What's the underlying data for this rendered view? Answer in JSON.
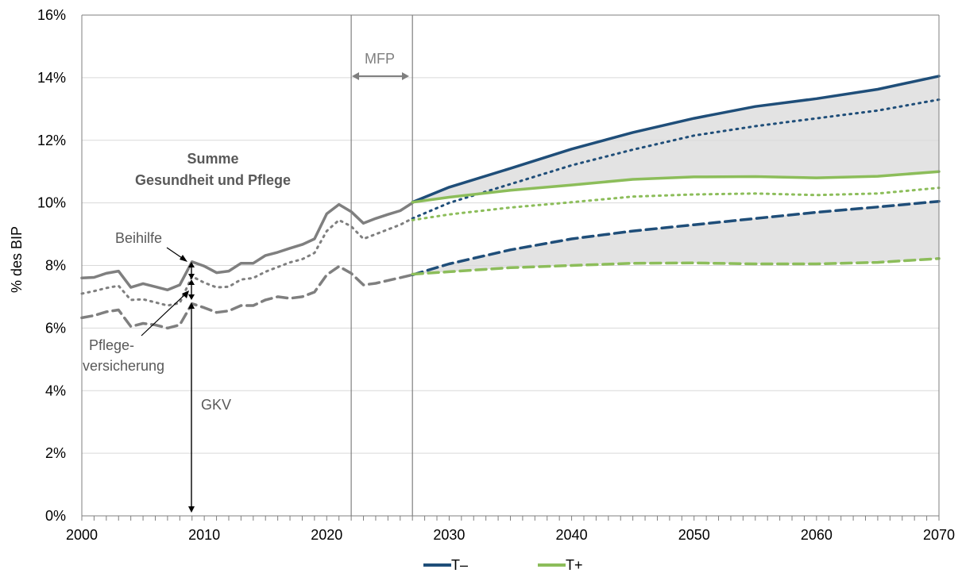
{
  "chart_data": {
    "type": "line",
    "ylabel": "% des BIP",
    "xlim": [
      2000,
      2070
    ],
    "ylim": [
      0,
      16
    ],
    "x_ticks": [
      2000,
      2010,
      2020,
      2030,
      2040,
      2050,
      2060,
      2070
    ],
    "x_tick_labels": [
      "2000",
      "2010",
      "2020",
      "2030",
      "2040",
      "2050",
      "2060",
      "2070"
    ],
    "y_ticks": [
      0,
      2,
      4,
      6,
      8,
      10,
      12,
      14,
      16
    ],
    "y_tick_labels": [
      "0%",
      "2%",
      "4%",
      "6%",
      "8%",
      "10%",
      "12%",
      "14%",
      "16%"
    ],
    "grid": "horizontal",
    "legend_position": "bottom",
    "legend": [
      {
        "label": "T–",
        "color": "#1f4e79"
      },
      {
        "label": "T+",
        "color": "#8cbd5a"
      }
    ],
    "annotations": {
      "title_line1": "Summe",
      "title_line2": "Gesundheit und Pflege",
      "mfp": "MFP",
      "beihilfe": "Beihilfe",
      "pflege_line1": "Pflege-",
      "pflege_line2": "versicherung",
      "gkv": "GKV"
    },
    "vertical_markers": [
      2022,
      2027
    ],
    "colors": {
      "historical": "#7f7f7f",
      "t_minus": "#1f4e79",
      "t_plus": "#8cbd5a",
      "band": "#d9d9d9",
      "grid": "#d9d9d9",
      "axis": "#7f7f7f"
    },
    "series": [
      {
        "name": "Summe (historisch)",
        "style": "solid",
        "color_key": "historical",
        "x": [
          2000,
          2001,
          2002,
          2003,
          2004,
          2005,
          2006,
          2007,
          2008,
          2009,
          2010,
          2011,
          2012,
          2013,
          2014,
          2015,
          2016,
          2017,
          2018,
          2019,
          2020,
          2021,
          2022,
          2023,
          2024,
          2025,
          2026,
          2027
        ],
        "y": [
          7.6,
          7.62,
          7.75,
          7.82,
          7.3,
          7.42,
          7.32,
          7.22,
          7.38,
          8.12,
          7.98,
          7.77,
          7.82,
          8.07,
          8.07,
          8.32,
          8.42,
          8.55,
          8.67,
          8.85,
          9.65,
          9.95,
          9.72,
          9.35,
          9.5,
          9.63,
          9.75,
          10.0
        ]
      },
      {
        "name": "GKV + Pflegeversicherung (historisch)",
        "style": "dotted",
        "color_key": "historical",
        "x": [
          2000,
          2001,
          2002,
          2003,
          2004,
          2005,
          2006,
          2007,
          2008,
          2009,
          2010,
          2011,
          2012,
          2013,
          2014,
          2015,
          2016,
          2017,
          2018,
          2019,
          2020,
          2021,
          2022,
          2023,
          2024,
          2025,
          2026,
          2027
        ],
        "y": [
          7.1,
          7.18,
          7.28,
          7.35,
          6.9,
          6.92,
          6.82,
          6.72,
          6.8,
          7.65,
          7.45,
          7.3,
          7.32,
          7.55,
          7.6,
          7.8,
          7.95,
          8.1,
          8.2,
          8.4,
          9.1,
          9.45,
          9.25,
          8.85,
          9.0,
          9.15,
          9.3,
          9.5
        ]
      },
      {
        "name": "GKV (historisch)",
        "style": "dashed",
        "color_key": "historical",
        "x": [
          2000,
          2001,
          2002,
          2003,
          2004,
          2005,
          2006,
          2007,
          2008,
          2009,
          2010,
          2011,
          2012,
          2013,
          2014,
          2015,
          2016,
          2017,
          2018,
          2019,
          2020,
          2021,
          2022,
          2023,
          2024,
          2025,
          2026,
          2027
        ],
        "y": [
          6.33,
          6.4,
          6.52,
          6.58,
          6.05,
          6.15,
          6.1,
          6.0,
          6.1,
          6.78,
          6.65,
          6.5,
          6.55,
          6.72,
          6.72,
          6.9,
          7.0,
          6.95,
          7.0,
          7.15,
          7.7,
          7.97,
          7.75,
          7.38,
          7.43,
          7.52,
          7.61,
          7.7
        ]
      },
      {
        "name": "T– Summe",
        "style": "solid",
        "color_key": "t_minus",
        "x": [
          2027,
          2030,
          2035,
          2040,
          2045,
          2050,
          2055,
          2060,
          2065,
          2070
        ],
        "y": [
          10.02,
          10.5,
          11.1,
          11.72,
          12.25,
          12.7,
          13.08,
          13.33,
          13.63,
          14.05
        ]
      },
      {
        "name": "T– GKV + Pflegeversicherung",
        "style": "dotted",
        "color_key": "t_minus",
        "x": [
          2027,
          2030,
          2035,
          2040,
          2045,
          2050,
          2055,
          2060,
          2065,
          2070
        ],
        "y": [
          9.5,
          10.0,
          10.6,
          11.2,
          11.7,
          12.15,
          12.45,
          12.7,
          12.95,
          13.3
        ]
      },
      {
        "name": "T– GKV",
        "style": "dashed",
        "color_key": "t_minus",
        "x": [
          2027,
          2030,
          2035,
          2040,
          2045,
          2050,
          2055,
          2060,
          2065,
          2070
        ],
        "y": [
          7.7,
          8.05,
          8.5,
          8.85,
          9.1,
          9.3,
          9.5,
          9.7,
          9.87,
          10.05
        ]
      },
      {
        "name": "T+ Summe",
        "style": "solid",
        "color_key": "t_plus",
        "x": [
          2027,
          2030,
          2035,
          2040,
          2045,
          2050,
          2055,
          2060,
          2065,
          2070
        ],
        "y": [
          10.02,
          10.18,
          10.4,
          10.57,
          10.75,
          10.83,
          10.84,
          10.8,
          10.85,
          11.0
        ]
      },
      {
        "name": "T+ GKV + Pflegeversicherung",
        "style": "dotted",
        "color_key": "t_plus",
        "x": [
          2027,
          2030,
          2035,
          2040,
          2045,
          2050,
          2055,
          2060,
          2065,
          2070
        ],
        "y": [
          9.45,
          9.63,
          9.85,
          10.02,
          10.2,
          10.27,
          10.3,
          10.25,
          10.3,
          10.48
        ]
      },
      {
        "name": "T+ GKV",
        "style": "dashed",
        "color_key": "t_plus",
        "x": [
          2027,
          2030,
          2035,
          2040,
          2045,
          2050,
          2055,
          2060,
          2065,
          2070
        ],
        "y": [
          7.72,
          7.8,
          7.93,
          8.0,
          8.07,
          8.08,
          8.05,
          8.05,
          8.1,
          8.22
        ]
      }
    ]
  }
}
